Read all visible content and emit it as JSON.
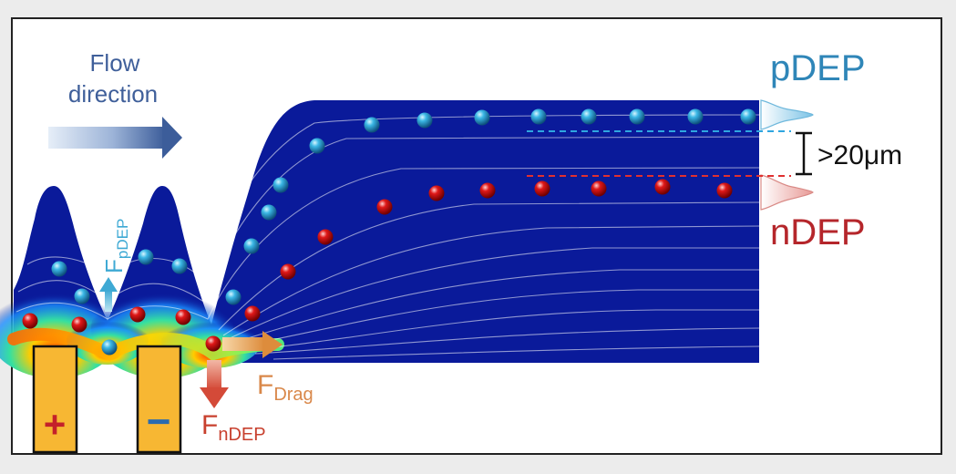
{
  "labels": {
    "flow_line1": "Flow",
    "flow_line2": "direction",
    "pdep": "pDEP",
    "ndep": "nDEP",
    "gap": ">20μm",
    "f_pdep_main": "F",
    "f_pdep_sub": "pDEP",
    "f_drag_main": "F",
    "f_drag_sub": "Drag",
    "f_ndep_main": "F",
    "f_ndep_sub": "nDEP",
    "electrode_pos": "+",
    "electrode_neg": "−"
  },
  "colors": {
    "channel": "#0a1a9a",
    "channel_dark": "#061078",
    "pdep_text": "#2f86b8",
    "ndep_text": "#b5262b",
    "flow_text": "#3f5f9a",
    "electrode_fill": "#f7b733",
    "pdep_particle": "#2aa6d6",
    "ndep_particle": "#d41616",
    "drag_arrow": "#e79a52",
    "ndep_arrow": "#d86048",
    "pdep_arrow": "#5ab8d8",
    "blue_dash": "#2fa6e0",
    "red_dash": "#e03030"
  },
  "icons": {
    "flow_arrow": "right-arrow-icon",
    "gap_marker": "dimension-bracket-icon"
  }
}
